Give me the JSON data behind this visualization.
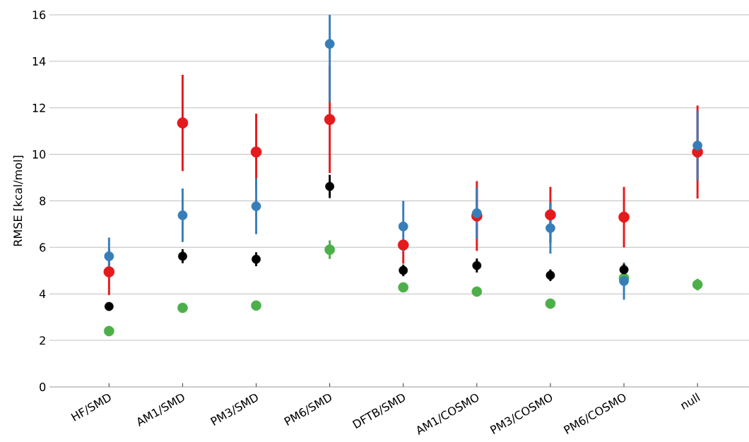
{
  "chart_data": {
    "type": "scatter",
    "ylabel": "RMSE [kcal/mol]",
    "categories": [
      "HF/SMD",
      "AM1/SMD",
      "PM3/SMD",
      "PM6/SMD",
      "DFTB/SMD",
      "AM1/COSMO",
      "PM3/COSMO",
      "PM6/COSMO",
      "null"
    ],
    "series": [
      {
        "color": "#e41a1c",
        "values": [
          4.95,
          11.35,
          10.1,
          11.5,
          6.1,
          7.35,
          7.4,
          7.3,
          10.1
        ],
        "errors": [
          1.0,
          2.07,
          1.65,
          2.3,
          [
            5.3,
            6.1
          ],
          1.5,
          1.2,
          1.3,
          2.0
        ]
      },
      {
        "color": "#4daf4a",
        "values": [
          2.4,
          3.4,
          3.5,
          5.9,
          4.28,
          4.1,
          3.58,
          4.68,
          4.4
        ],
        "errors": [
          null,
          0.15,
          0.2,
          0.4,
          0.2,
          0.2,
          0.2,
          0.1,
          0.25
        ]
      },
      {
        "color": "#377eb8",
        "values": [
          5.62,
          7.38,
          7.77,
          14.75,
          6.9,
          7.47,
          6.83,
          4.55,
          10.38
        ],
        "errors": [
          0.8,
          1.15,
          1.2,
          [
            12.25,
            16
          ],
          1.1,
          1.1,
          1.1,
          0.8,
          1.5
        ]
      },
      {
        "color": "#000000",
        "values": [
          3.46,
          5.62,
          5.49,
          8.62,
          5.01,
          5.22,
          4.8,
          5.04,
          null
        ],
        "errors": [
          0.1,
          0.3,
          0.3,
          0.5,
          0.25,
          0.3,
          0.25,
          0.25,
          null
        ]
      }
    ],
    "ylim": [
      0,
      16
    ],
    "yticks": [
      0,
      2,
      4,
      6,
      8,
      10,
      12,
      14,
      16
    ],
    "grid": "y",
    "marker": "circle"
  }
}
